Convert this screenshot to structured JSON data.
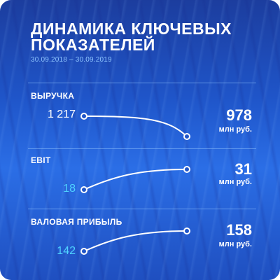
{
  "title_lines": [
    "ДИНАМИКА КЛЮЧЕВЫХ",
    "ПОКАЗАТЕЛЕЙ"
  ],
  "period": "30.09.2018 – 30.09.2019",
  "colors": {
    "background_top": "#1c3d9e",
    "background_bottom": "#2b6ee6",
    "accent_cyan": "#4fd3ff",
    "text_white": "#ffffff"
  },
  "chart_data": [
    {
      "type": "line",
      "title": "ВЫРУЧКА",
      "x": [
        "30.09.2018",
        "30.09.2019"
      ],
      "values": [
        1217,
        978
      ],
      "start_label": "1 217",
      "end_label": "978",
      "unit": "млн руб.",
      "direction": "down"
    },
    {
      "type": "line",
      "title": "EBIT",
      "x": [
        "30.09.2018",
        "30.09.2019"
      ],
      "values": [
        18,
        31
      ],
      "start_label": "18",
      "end_label": "31",
      "unit": "млн руб.",
      "direction": "up"
    },
    {
      "type": "line",
      "title": "ВАЛОВАЯ ПРИБЫЛЬ",
      "x": [
        "30.09.2018",
        "30.09.2019"
      ],
      "values": [
        142,
        158
      ],
      "start_label": "142",
      "end_label": "158",
      "unit": "млн руб.",
      "direction": "up"
    }
  ]
}
